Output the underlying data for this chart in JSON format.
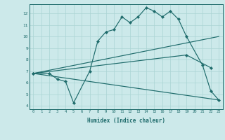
{
  "xlabel": "Humidex (Indice chaleur)",
  "xlim": [
    -0.5,
    23.5
  ],
  "ylim": [
    3.7,
    12.8
  ],
  "yticks": [
    4,
    5,
    6,
    7,
    8,
    9,
    10,
    11,
    12
  ],
  "xticks": [
    0,
    1,
    2,
    3,
    4,
    5,
    6,
    7,
    8,
    9,
    10,
    11,
    12,
    13,
    14,
    15,
    16,
    17,
    18,
    19,
    20,
    21,
    22,
    23
  ],
  "bg_color": "#cce9ea",
  "line_color": "#1e6b6b",
  "grid_color": "#aad4d4",
  "line1_x": [
    0,
    2,
    3,
    4,
    5,
    7,
    8,
    9,
    10,
    11,
    12,
    13,
    14,
    15,
    16,
    17,
    18,
    19,
    21,
    22,
    23
  ],
  "line1_y": [
    6.8,
    6.8,
    6.3,
    6.1,
    4.25,
    7.0,
    9.6,
    10.4,
    10.6,
    11.7,
    11.2,
    11.7,
    12.5,
    12.2,
    11.7,
    12.2,
    11.5,
    10.0,
    7.5,
    5.3,
    4.5
  ],
  "line2_x": [
    0,
    23
  ],
  "line2_y": [
    6.8,
    10.0
  ],
  "line3_x": [
    0,
    23
  ],
  "line3_y": [
    6.8,
    4.5
  ],
  "line4_x": [
    0,
    19,
    22
  ],
  "line4_y": [
    6.8,
    8.4,
    7.3
  ]
}
